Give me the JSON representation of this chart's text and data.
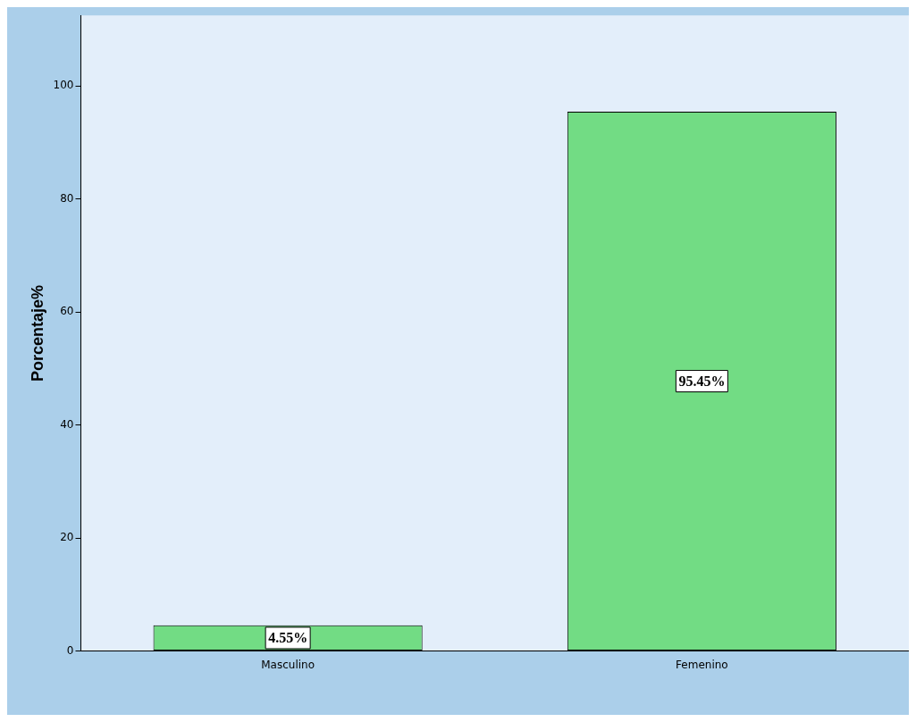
{
  "chart_data": {
    "type": "bar",
    "categories": [
      "Masculino",
      "Femenino"
    ],
    "values": [
      4.55,
      95.45
    ],
    "value_labels": [
      "4.55%",
      "95.45%"
    ],
    "color": "#72dc84",
    "ylabel": "Porcentaje%",
    "ylim": [
      0,
      112.5
    ],
    "yticks": [
      0,
      20,
      40,
      60,
      80,
      100
    ],
    "grid": false,
    "legend": false
  }
}
